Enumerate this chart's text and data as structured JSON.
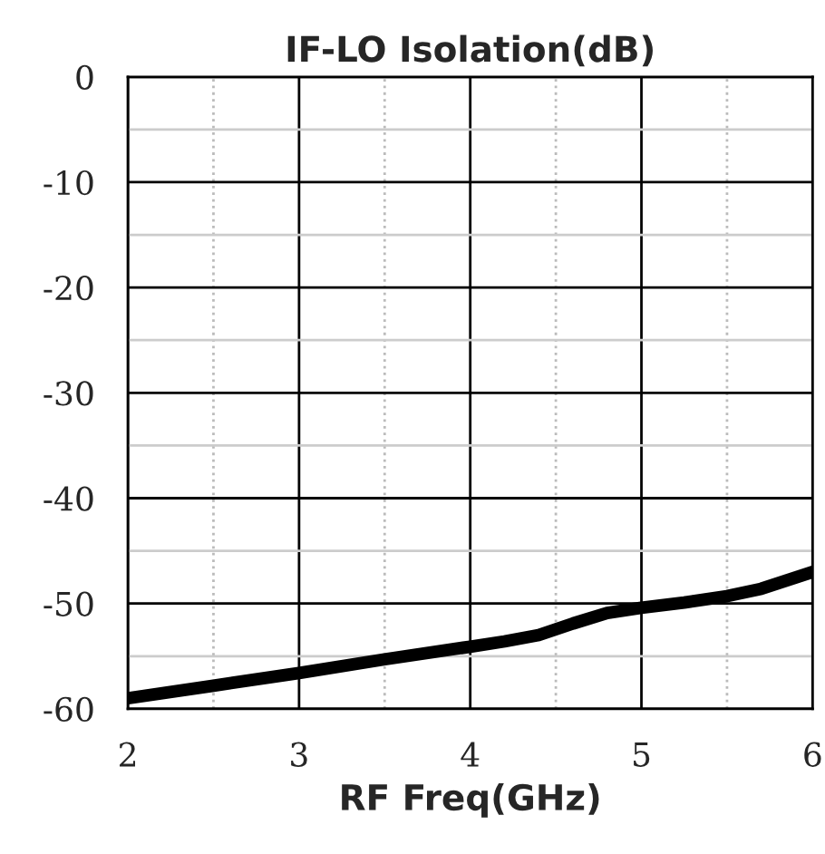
{
  "chart_data": {
    "type": "line",
    "title": "IF-LO Isolation(dB)",
    "xlabel": "RF Freq(GHz)",
    "series": [
      {
        "color": "#000000",
        "x": [
          2,
          2.5,
          3,
          3.5,
          4,
          4.2,
          4.4,
          4.6,
          4.8,
          5,
          5.25,
          5.5,
          5.7,
          5.85,
          6
        ],
        "values": [
          -59,
          -57.8,
          -56.6,
          -55.3,
          -54.1,
          -53.6,
          -53.0,
          -51.9,
          -50.9,
          -50.4,
          -49.9,
          -49.3,
          -48.6,
          -47.8,
          -47.0
        ]
      }
    ],
    "xlim": [
      2,
      6
    ],
    "ylim": [
      -60,
      0
    ],
    "xticks": [
      2,
      {
        "value": 2.5,
        "label": null
      },
      3,
      {
        "value": 3.5,
        "label": null
      },
      4,
      {
        "value": 4.5,
        "label": null
      },
      5,
      {
        "value": 5.5,
        "label": null
      },
      6
    ],
    "yticks": [
      -60,
      {
        "value": -55,
        "label": null
      },
      -50,
      {
        "value": -45,
        "label": null
      },
      -40,
      {
        "value": -35,
        "label": null
      },
      -30,
      {
        "value": -25,
        "label": null
      },
      -20,
      {
        "value": -15,
        "label": null
      },
      -10,
      {
        "value": -5,
        "label": null
      },
      0
    ],
    "grid": true,
    "marker": "none",
    "line_style": "solid",
    "legend": false
  }
}
